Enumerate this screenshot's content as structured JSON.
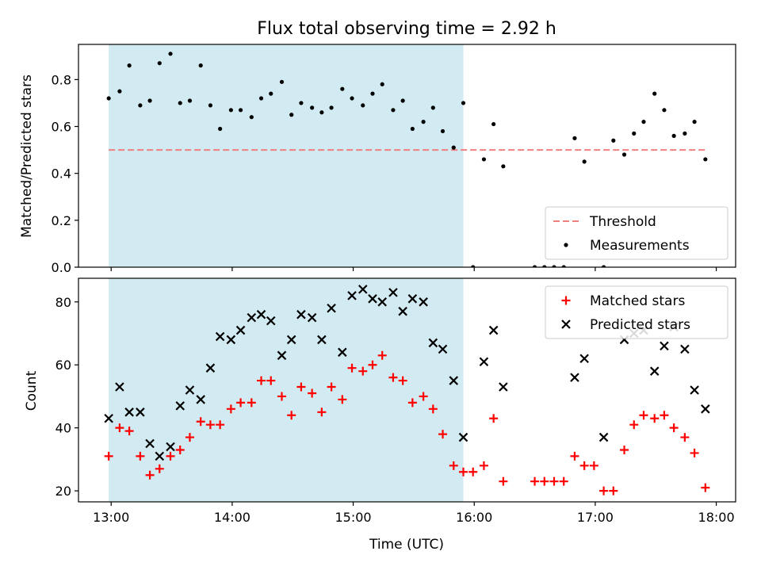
{
  "chart_data": {
    "type": "scatter",
    "title": "Flux total observing time = 2.92 h",
    "xlabel": "Time (UTC)",
    "x_unit": "hours (UTC)",
    "x_ticks": [
      "13:00",
      "14:00",
      "15:00",
      "16:00",
      "17:00",
      "18:00"
    ],
    "xlim": [
      12.73,
      18.16
    ],
    "shaded_interval": [
      12.98,
      15.91
    ],
    "shade_color": "#add8e6",
    "panels": [
      {
        "ylabel": "Matched/Predicted stars",
        "ylim": [
          0.0,
          0.95
        ],
        "y_ticks": [
          "0.0",
          "0.2",
          "0.4",
          "0.6",
          "0.8"
        ],
        "legend_placement": "lower-right",
        "threshold": {
          "name": "Threshold",
          "y": 0.5,
          "x_range": [
            12.98,
            17.91
          ],
          "color": "#f08080"
        },
        "series": [
          {
            "name": "Measurements",
            "marker": "dot",
            "color": "#000000",
            "x": [
              12.98,
              13.07,
              13.15,
              13.24,
              13.32,
              13.4,
              13.49,
              13.57,
              13.65,
              13.74,
              13.82,
              13.9,
              13.99,
              14.07,
              14.16,
              14.24,
              14.32,
              14.41,
              14.49,
              14.57,
              14.66,
              14.74,
              14.82,
              14.91,
              14.99,
              15.08,
              15.16,
              15.24,
              15.33,
              15.41,
              15.49,
              15.58,
              15.66,
              15.74,
              15.83,
              15.91,
              15.99,
              16.08,
              16.16,
              16.24,
              16.5,
              16.58,
              16.66,
              16.74,
              16.83,
              16.91,
              17.07,
              17.15,
              17.24,
              17.32,
              17.4,
              17.49,
              17.57,
              17.65,
              17.74,
              17.82,
              17.91
            ],
            "y": [
              0.72,
              0.75,
              0.86,
              0.69,
              0.71,
              0.87,
              0.91,
              0.7,
              0.71,
              0.86,
              0.69,
              0.59,
              0.67,
              0.67,
              0.64,
              0.72,
              0.74,
              0.79,
              0.65,
              0.7,
              0.68,
              0.66,
              0.68,
              0.76,
              0.72,
              0.69,
              0.74,
              0.78,
              0.67,
              0.71,
              0.59,
              0.62,
              0.68,
              0.58,
              0.51,
              0.7,
              0.0,
              0.46,
              0.61,
              0.43,
              0.0,
              0.0,
              0.0,
              0.0,
              0.55,
              0.45,
              0.0,
              0.54,
              0.48,
              0.57,
              0.62,
              0.74,
              0.67,
              0.56,
              0.57,
              0.62,
              0.46
            ]
          }
        ]
      },
      {
        "ylabel": "Count",
        "ylim": [
          16.5,
          87.5
        ],
        "y_ticks": [
          "20",
          "40",
          "60",
          "80"
        ],
        "legend_placement": "top-right",
        "series": [
          {
            "name": "Matched stars",
            "marker": "plus",
            "color": "#ff0000",
            "x": [
              12.98,
              13.07,
              13.15,
              13.24,
              13.32,
              13.4,
              13.49,
              13.57,
              13.65,
              13.74,
              13.82,
              13.9,
              13.99,
              14.07,
              14.16,
              14.24,
              14.32,
              14.41,
              14.49,
              14.57,
              14.66,
              14.74,
              14.82,
              14.91,
              14.99,
              15.08,
              15.16,
              15.24,
              15.33,
              15.41,
              15.49,
              15.58,
              15.66,
              15.74,
              15.83,
              15.91,
              15.99,
              16.08,
              16.16,
              16.24,
              16.5,
              16.58,
              16.66,
              16.74,
              16.83,
              16.91,
              16.99,
              17.07,
              17.15,
              17.24,
              17.32,
              17.4,
              17.49,
              17.57,
              17.65,
              17.74,
              17.82,
              17.91
            ],
            "y": [
              31,
              40,
              39,
              31,
              25,
              27,
              31,
              33,
              37,
              42,
              41,
              41,
              46,
              48,
              48,
              55,
              55,
              50,
              44,
              53,
              51,
              45,
              53,
              49,
              59,
              58,
              60,
              63,
              56,
              55,
              48,
              50,
              46,
              38,
              28,
              26,
              26,
              28,
              43,
              23,
              23,
              23,
              23,
              23,
              31,
              28,
              28,
              20,
              20,
              33,
              41,
              44,
              43,
              44,
              40,
              37,
              32,
              21
            ]
          },
          {
            "name": "Predicted stars",
            "marker": "x",
            "color": "#000000",
            "x": [
              12.98,
              13.07,
              13.15,
              13.24,
              13.32,
              13.4,
              13.49,
              13.57,
              13.65,
              13.74,
              13.82,
              13.9,
              13.99,
              14.07,
              14.16,
              14.24,
              14.32,
              14.41,
              14.49,
              14.57,
              14.66,
              14.74,
              14.82,
              14.91,
              14.99,
              15.08,
              15.16,
              15.24,
              15.33,
              15.41,
              15.49,
              15.58,
              15.66,
              15.74,
              15.83,
              15.91,
              16.08,
              16.16,
              16.24,
              16.83,
              16.91,
              17.07,
              17.24,
              17.32,
              17.4,
              17.49,
              17.57,
              17.65,
              17.74,
              17.82,
              17.91
            ],
            "y": [
              43,
              53,
              45,
              45,
              35,
              31,
              34,
              47,
              52,
              49,
              59,
              69,
              68,
              71,
              75,
              76,
              74,
              63,
              68,
              76,
              75,
              68,
              78,
              64,
              82,
              84,
              81,
              80,
              83,
              77,
              81,
              80,
              67,
              65,
              55,
              37,
              61,
              71,
              53,
              56,
              62,
              37,
              68,
              70,
              71,
              58,
              66,
              72,
              65,
              52,
              46
            ]
          }
        ]
      }
    ]
  }
}
